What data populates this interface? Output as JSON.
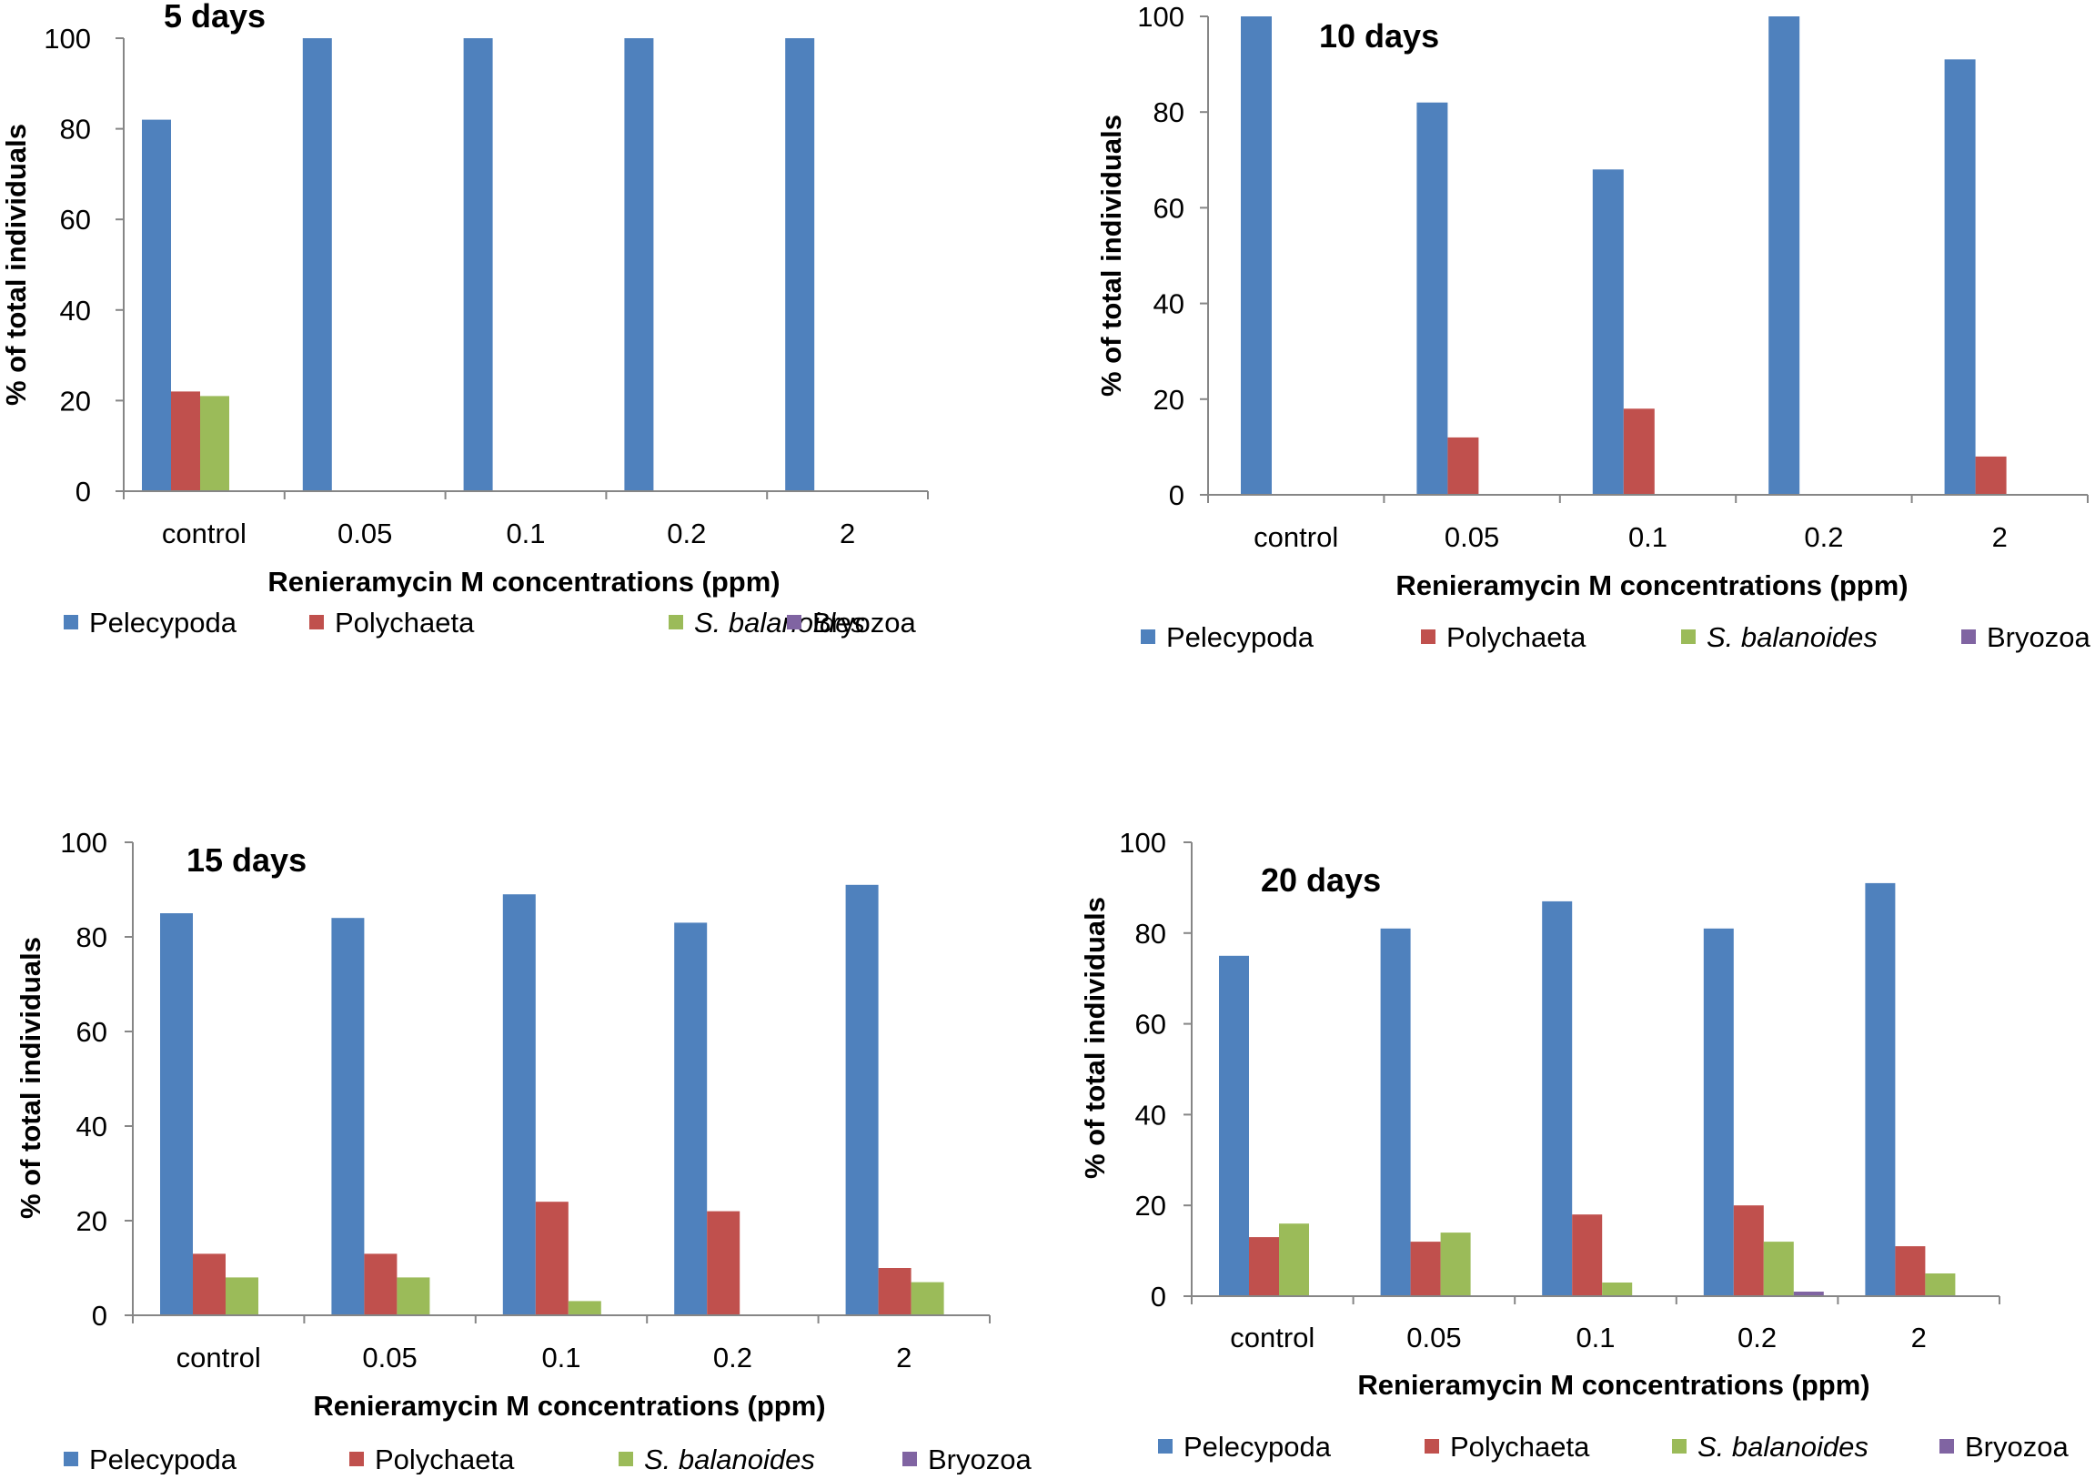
{
  "chart_data": [
    {
      "type": "bar",
      "title": "5 days",
      "xlabel": "Renieramycin M concentrations (ppm)",
      "ylabel": "% of total individuals",
      "ylim": [
        0,
        100
      ],
      "yticks": [
        "0",
        "20",
        "40",
        "60",
        "80",
        "100"
      ],
      "categories": [
        "control",
        "0.05",
        "0.1",
        "0.2",
        "2"
      ],
      "series": [
        {
          "name": "Pelecypoda",
          "italic": false,
          "values": [
            82,
            100,
            100,
            100,
            100
          ]
        },
        {
          "name": "Polychaeta",
          "italic": false,
          "values": [
            22,
            0,
            0,
            0,
            0
          ]
        },
        {
          "name": "S. balanoides",
          "italic": true,
          "values": [
            21,
            0,
            0,
            0,
            0
          ]
        },
        {
          "name": "Bryozoa",
          "italic": false,
          "values": [
            0,
            0,
            0,
            0,
            0
          ]
        }
      ],
      "legend_position": "bottom"
    },
    {
      "type": "bar",
      "title": "10 days",
      "xlabel": "Renieramycin M concentrations (ppm)",
      "ylabel": "% of total individuals",
      "ylim": [
        0,
        100
      ],
      "yticks": [
        "0",
        "20",
        "40",
        "60",
        "80",
        "100"
      ],
      "categories": [
        "control",
        "0.05",
        "0.1",
        "0.2",
        "2"
      ],
      "series": [
        {
          "name": "Pelecypoda",
          "italic": false,
          "values": [
            100,
            82,
            68,
            100,
            91
          ]
        },
        {
          "name": "Polychaeta",
          "italic": false,
          "values": [
            0,
            12,
            18,
            0,
            8
          ]
        },
        {
          "name": "S. balanoides",
          "italic": true,
          "values": [
            0,
            0,
            0,
            0,
            0
          ]
        },
        {
          "name": "Bryozoa",
          "italic": false,
          "values": [
            0,
            0,
            0,
            0,
            0
          ]
        }
      ],
      "legend_position": "bottom"
    },
    {
      "type": "bar",
      "title": "15 days",
      "xlabel": "Renieramycin M concentrations (ppm)",
      "ylabel": "% of total individuals",
      "ylim": [
        0,
        100
      ],
      "yticks": [
        "0",
        "20",
        "40",
        "60",
        "80",
        "100"
      ],
      "categories": [
        "control",
        "0.05",
        "0.1",
        "0.2",
        "2"
      ],
      "series": [
        {
          "name": "Pelecypoda",
          "italic": false,
          "values": [
            85,
            84,
            89,
            83,
            91
          ]
        },
        {
          "name": "Polychaeta",
          "italic": false,
          "values": [
            13,
            13,
            24,
            22,
            10
          ]
        },
        {
          "name": "S. balanoides",
          "italic": true,
          "values": [
            8,
            8,
            3,
            0,
            7
          ]
        },
        {
          "name": "Bryozoa",
          "italic": false,
          "values": [
            0,
            0,
            0,
            0,
            0
          ]
        }
      ],
      "legend_position": "bottom"
    },
    {
      "type": "bar",
      "title": "20 days",
      "xlabel": "Renieramycin M concentrations (ppm)",
      "ylabel": "% of total individuals",
      "ylim": [
        0,
        100
      ],
      "yticks": [
        "0",
        "20",
        "40",
        "60",
        "80",
        "100"
      ],
      "categories": [
        "control",
        "0.05",
        "0.1",
        "0.2",
        "2"
      ],
      "series": [
        {
          "name": "Pelecypoda",
          "italic": false,
          "values": [
            75,
            81,
            87,
            81,
            91
          ]
        },
        {
          "name": "Polychaeta",
          "italic": false,
          "values": [
            13,
            12,
            18,
            20,
            11
          ]
        },
        {
          "name": "S. balanoides",
          "italic": true,
          "values": [
            16,
            14,
            3,
            12,
            5
          ]
        },
        {
          "name": "Bryozoa",
          "italic": false,
          "values": [
            0,
            0,
            0,
            1,
            0
          ]
        }
      ],
      "legend_position": "bottom"
    }
  ],
  "colors": {
    "Pelecypoda": "#4f81bd",
    "Polychaeta": "#c0504d",
    "S. balanoides": "#9bbb59",
    "Bryozoa": "#8064a2"
  }
}
